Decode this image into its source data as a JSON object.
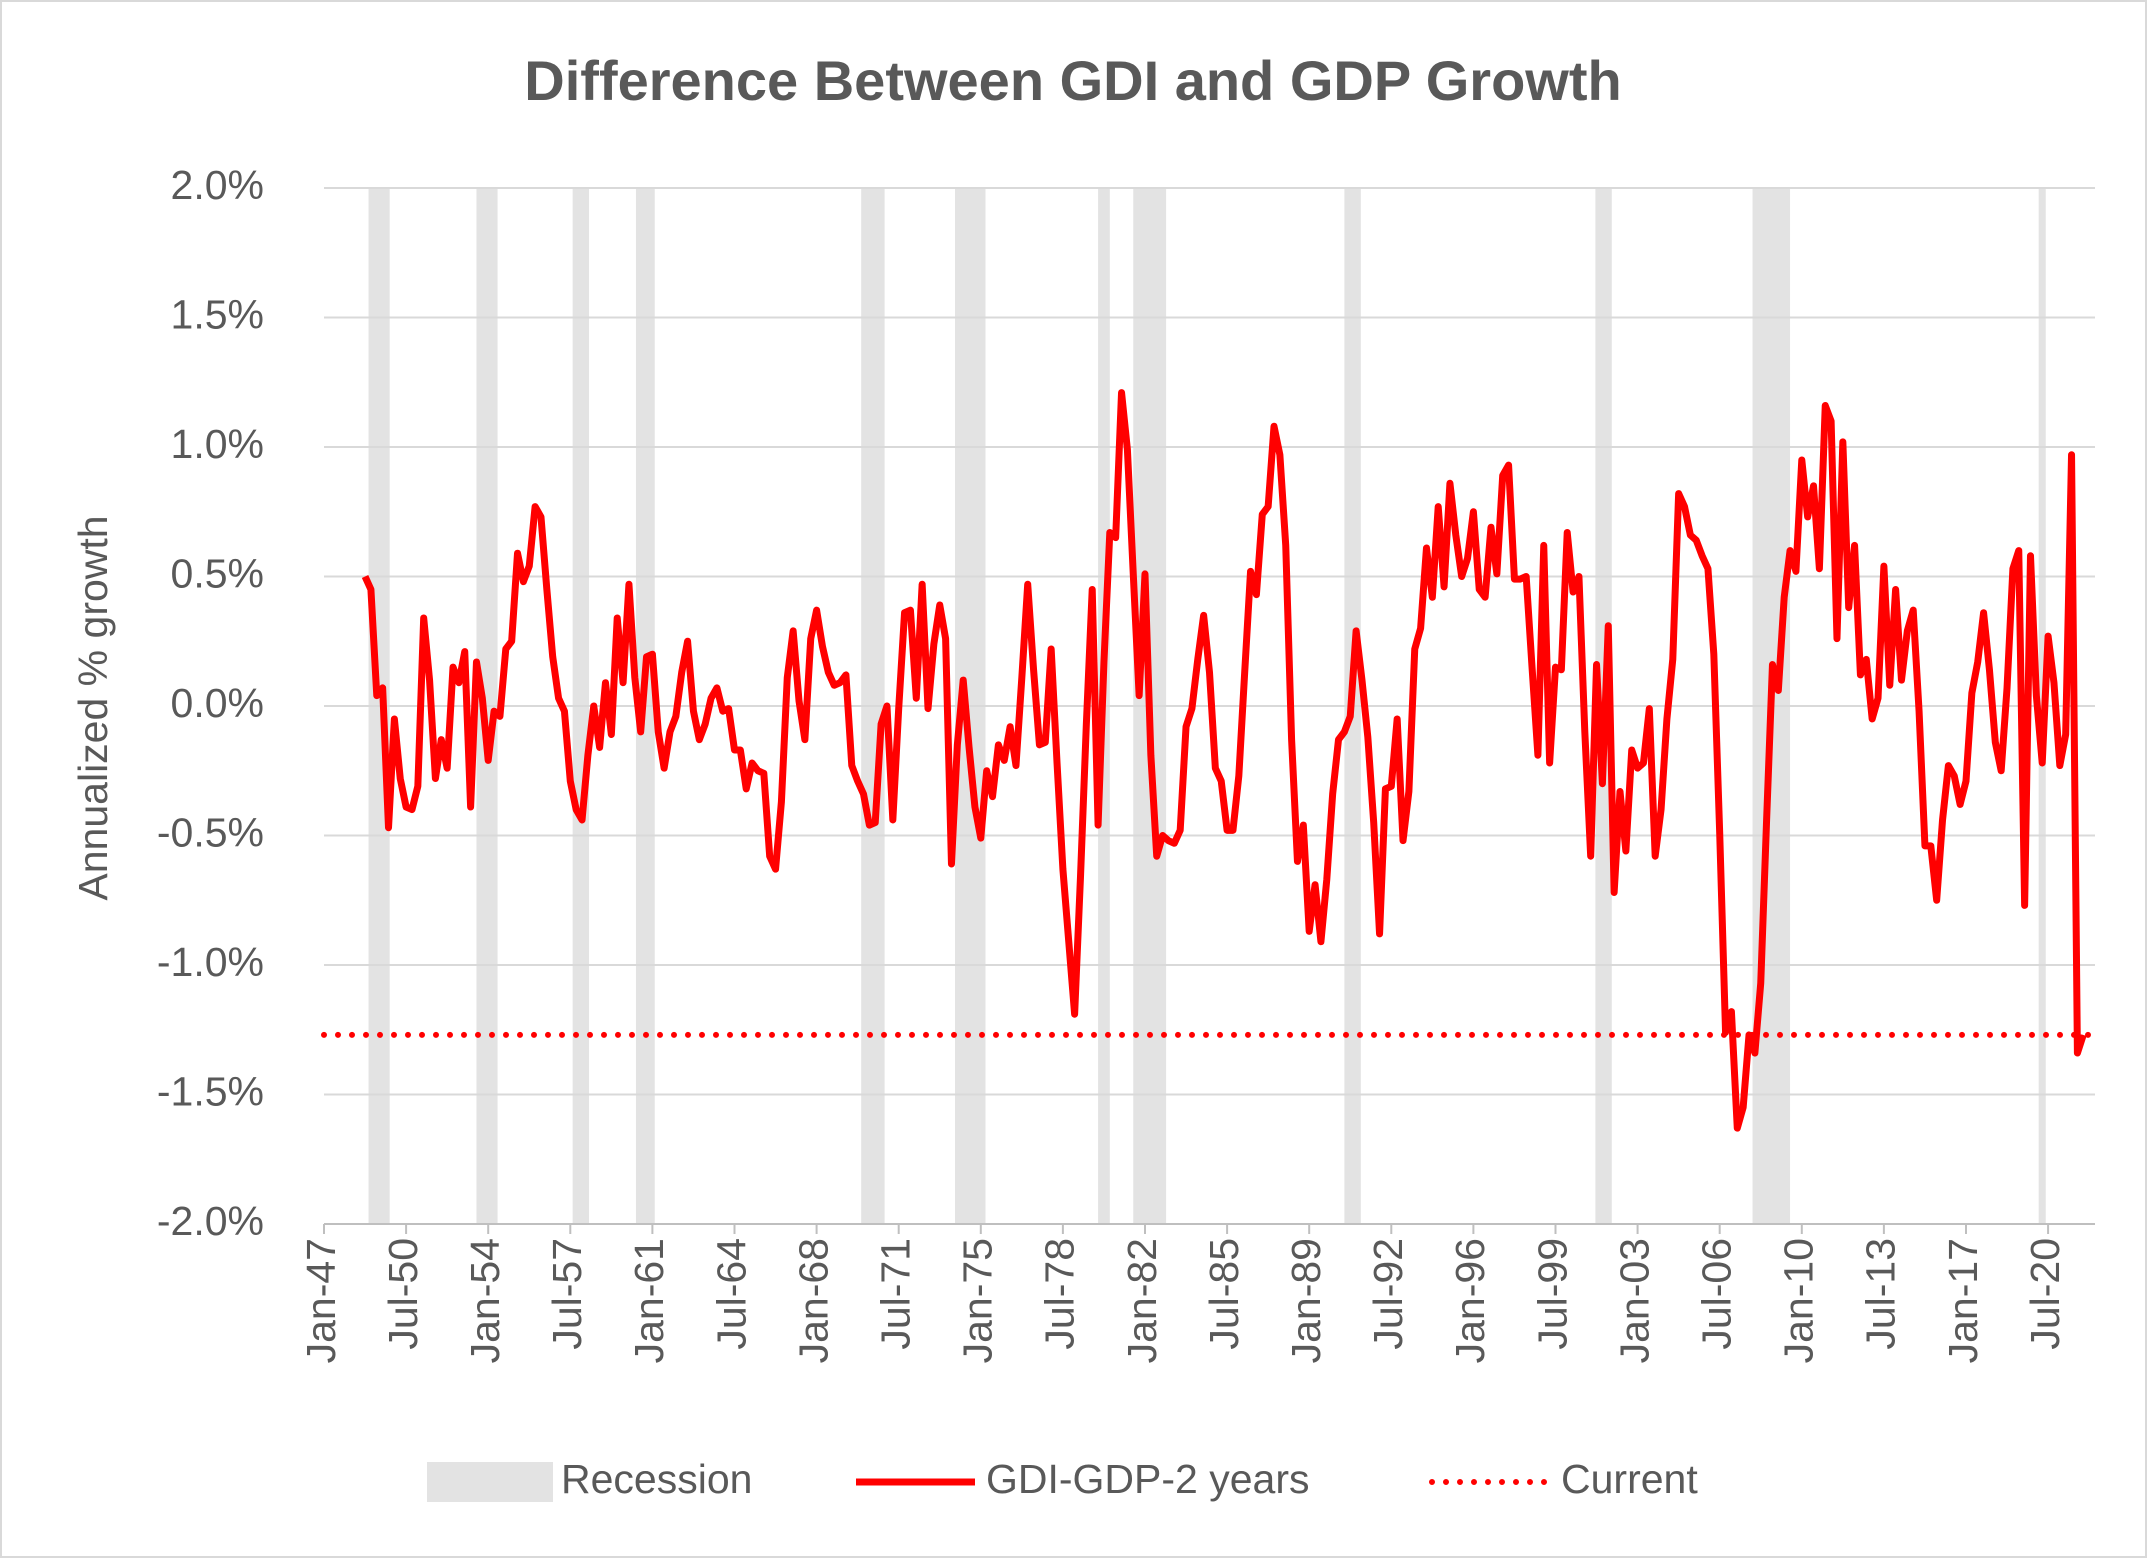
{
  "chart_data": {
    "type": "line",
    "title": "Difference Between GDI and GDP Growth",
    "y_label": "Annualized % growth",
    "xlim": [
      1947,
      2022.5
    ],
    "ylim": [
      -2,
      2
    ],
    "grid": true,
    "legend": "bottom",
    "xticks": [
      {
        "value": 1947,
        "label": "Jan-47"
      },
      {
        "value": 1950.5,
        "label": "Jul-50"
      },
      {
        "value": 1954,
        "label": "Jan-54"
      },
      {
        "value": 1957.5,
        "label": "Jul-57"
      },
      {
        "value": 1961,
        "label": "Jan-61"
      },
      {
        "value": 1964.5,
        "label": "Jul-64"
      },
      {
        "value": 1968,
        "label": "Jan-68"
      },
      {
        "value": 1971.5,
        "label": "Jul-71"
      },
      {
        "value": 1975,
        "label": "Jan-75"
      },
      {
        "value": 1978.5,
        "label": "Jul-78"
      },
      {
        "value": 1982,
        "label": "Jan-82"
      },
      {
        "value": 1985.5,
        "label": "Jul-85"
      },
      {
        "value": 1989,
        "label": "Jan-89"
      },
      {
        "value": 1992.5,
        "label": "Jul-92"
      },
      {
        "value": 1996,
        "label": "Jan-96"
      },
      {
        "value": 1999.5,
        "label": "Jul-99"
      },
      {
        "value": 2003,
        "label": "Jan-03"
      },
      {
        "value": 2006.5,
        "label": "Jul-06"
      },
      {
        "value": 2010,
        "label": "Jan-10"
      },
      {
        "value": 2013.5,
        "label": "Jul-13"
      },
      {
        "value": 2017,
        "label": "Jan-17"
      },
      {
        "value": 2020.5,
        "label": "Jul-20"
      }
    ],
    "yticks": [
      {
        "value": 2,
        "label": "2.0%"
      },
      {
        "value": 1.5,
        "label": "1.5%"
      },
      {
        "value": 1,
        "label": "1.0%"
      },
      {
        "value": 0.5,
        "label": "0.5%"
      },
      {
        "value": 0,
        "label": "0.0%"
      },
      {
        "value": -0.5,
        "label": "-0.5%"
      },
      {
        "value": -1,
        "label": "-1.0%"
      },
      {
        "value": -1.5,
        "label": "-1.5%"
      },
      {
        "value": -2,
        "label": "-2.0%"
      }
    ],
    "recessions": {
      "name": "Recession",
      "color": "#e3e3e3",
      "ranges": [
        [
          1948.9,
          1949.8
        ],
        [
          1953.5,
          1954.4
        ],
        [
          1957.6,
          1958.3
        ],
        [
          1960.3,
          1961.1
        ],
        [
          1969.9,
          1970.9
        ],
        [
          1973.9,
          1975.2
        ],
        [
          1980.0,
          1980.5
        ],
        [
          1981.5,
          1982.9
        ],
        [
          1990.5,
          1991.2
        ],
        [
          2001.2,
          2001.9
        ],
        [
          2007.9,
          2009.5
        ],
        [
          2020.1,
          2020.4
        ]
      ]
    },
    "x": [
      1948.75,
      1949,
      1949.25,
      1949.5,
      1949.75,
      1950,
      1950.25,
      1950.5,
      1950.75,
      1951,
      1951.25,
      1951.5,
      1951.75,
      1952,
      1952.25,
      1952.5,
      1952.75,
      1953,
      1953.25,
      1953.5,
      1953.75,
      1954,
      1954.25,
      1954.5,
      1954.75,
      1955,
      1955.25,
      1955.5,
      1955.75,
      1956,
      1956.25,
      1956.5,
      1956.75,
      1957,
      1957.25,
      1957.5,
      1957.75,
      1958,
      1958.25,
      1958.5,
      1958.75,
      1959,
      1959.25,
      1959.5,
      1959.75,
      1960,
      1960.25,
      1960.5,
      1960.75,
      1961,
      1961.25,
      1961.5,
      1961.75,
      1962,
      1962.25,
      1962.5,
      1962.75,
      1963,
      1963.25,
      1963.5,
      1963.75,
      1964,
      1964.25,
      1964.5,
      1964.75,
      1965,
      1965.25,
      1965.5,
      1965.75,
      1966,
      1966.25,
      1966.5,
      1966.75,
      1967,
      1967.25,
      1967.5,
      1967.75,
      1968,
      1968.25,
      1968.5,
      1968.75,
      1969,
      1969.25,
      1969.5,
      1969.75,
      1970,
      1970.25,
      1970.5,
      1970.75,
      1971,
      1971.25,
      1971.5,
      1971.75,
      1972,
      1972.25,
      1972.5,
      1972.75,
      1973,
      1973.25,
      1973.5,
      1973.75,
      1974,
      1974.25,
      1974.5,
      1974.75,
      1975,
      1975.25,
      1975.5,
      1975.75,
      1976,
      1976.25,
      1976.5,
      1976.75,
      1977,
      1977.25,
      1977.5,
      1977.75,
      1978,
      1978.25,
      1978.5,
      1978.75,
      1979,
      1979.25,
      1979.5,
      1979.75,
      1980,
      1980.25,
      1980.5,
      1980.75,
      1981,
      1981.25,
      1981.5,
      1981.75,
      1982,
      1982.25,
      1982.5,
      1982.75,
      1983,
      1983.25,
      1983.5,
      1983.75,
      1984,
      1984.25,
      1984.5,
      1984.75,
      1985,
      1985.25,
      1985.5,
      1985.75,
      1986,
      1986.25,
      1986.5,
      1986.75,
      1987,
      1987.25,
      1987.5,
      1987.75,
      1988,
      1988.25,
      1988.5,
      1988.75,
      1989,
      1989.25,
      1989.5,
      1989.75,
      1990,
      1990.25,
      1990.5,
      1990.75,
      1991,
      1991.25,
      1991.5,
      1991.75,
      1992,
      1992.25,
      1992.5,
      1992.75,
      1993,
      1993.25,
      1993.5,
      1993.75,
      1994,
      1994.25,
      1994.5,
      1994.75,
      1995,
      1995.25,
      1995.5,
      1995.75,
      1996,
      1996.25,
      1996.5,
      1996.75,
      1997,
      1997.25,
      1997.5,
      1997.75,
      1998,
      1998.25,
      1998.5,
      1998.75,
      1999,
      1999.25,
      1999.5,
      1999.75,
      2000,
      2000.25,
      2000.5,
      2000.75,
      2001,
      2001.25,
      2001.5,
      2001.75,
      2002,
      2002.25,
      2002.5,
      2002.75,
      2003,
      2003.25,
      2003.5,
      2003.75,
      2004,
      2004.25,
      2004.5,
      2004.75,
      2005,
      2005.25,
      2005.5,
      2005.75,
      2006,
      2006.25,
      2006.5,
      2006.75,
      2007,
      2007.25,
      2007.5,
      2007.75,
      2008,
      2008.25,
      2008.5,
      2008.75,
      2009,
      2009.25,
      2009.5,
      2009.75,
      2010,
      2010.25,
      2010.5,
      2010.75,
      2011,
      2011.25,
      2011.5,
      2011.75,
      2012,
      2012.25,
      2012.5,
      2012.75,
      2013,
      2013.25,
      2013.5,
      2013.75,
      2014,
      2014.25,
      2014.5,
      2014.75,
      2015,
      2015.25,
      2015.5,
      2015.75,
      2016,
      2016.25,
      2016.5,
      2016.75,
      2017,
      2017.25,
      2017.5,
      2017.75,
      2018,
      2018.25,
      2018.5,
      2018.75,
      2019,
      2019.25,
      2019.5,
      2019.75,
      2020,
      2020.25,
      2020.5,
      2020.75,
      2021,
      2021.25,
      2021.5,
      2021.75,
      2022
    ],
    "series": [
      {
        "name": "GDI-GDP-2 years",
        "color": "#ff0000",
        "style": "solid",
        "values": [
          0.5,
          0.45,
          0.04,
          0.07,
          -0.47,
          -0.05,
          -0.28,
          -0.39,
          -0.4,
          -0.31,
          0.34,
          0.1,
          -0.28,
          -0.13,
          -0.24,
          0.15,
          0.09,
          0.21,
          -0.39,
          0.17,
          0.03,
          -0.21,
          -0.02,
          -0.04,
          0.22,
          0.25,
          0.59,
          0.48,
          0.54,
          0.77,
          0.73,
          0.45,
          0.19,
          0.03,
          -0.02,
          -0.29,
          -0.4,
          -0.44,
          -0.19,
          0.0,
          -0.16,
          0.09,
          -0.11,
          0.34,
          0.09,
          0.47,
          0.11,
          -0.1,
          0.19,
          0.2,
          -0.1,
          -0.24,
          -0.1,
          -0.04,
          0.13,
          0.25,
          -0.02,
          -0.13,
          -0.07,
          0.03,
          0.07,
          -0.02,
          -0.01,
          -0.17,
          -0.17,
          -0.32,
          -0.22,
          -0.25,
          -0.26,
          -0.58,
          -0.63,
          -0.37,
          0.11,
          0.29,
          0.02,
          -0.13,
          0.26,
          0.37,
          0.23,
          0.13,
          0.08,
          0.09,
          0.12,
          -0.23,
          -0.29,
          -0.34,
          -0.46,
          -0.45,
          -0.07,
          0.0,
          -0.44,
          -0.01,
          0.36,
          0.37,
          0.03,
          0.47,
          -0.01,
          0.24,
          0.39,
          0.26,
          -0.61,
          -0.15,
          0.1,
          -0.16,
          -0.39,
          -0.51,
          -0.25,
          -0.35,
          -0.15,
          -0.21,
          -0.08,
          -0.23,
          0.11,
          0.47,
          0.14,
          -0.15,
          -0.14,
          0.22,
          -0.22,
          -0.63,
          -0.91,
          -1.19,
          -0.66,
          -0.07,
          0.45,
          -0.46,
          0.17,
          0.67,
          0.65,
          1.21,
          0.99,
          0.51,
          0.04,
          0.51,
          -0.19,
          -0.58,
          -0.5,
          -0.52,
          -0.53,
          -0.48,
          -0.08,
          -0.01,
          0.18,
          0.35,
          0.13,
          -0.24,
          -0.29,
          -0.48,
          -0.48,
          -0.27,
          0.13,
          0.52,
          0.43,
          0.74,
          0.77,
          1.08,
          0.97,
          0.62,
          -0.13,
          -0.6,
          -0.46,
          -0.87,
          -0.69,
          -0.91,
          -0.67,
          -0.34,
          -0.13,
          -0.1,
          -0.04,
          0.29,
          0.1,
          -0.12,
          -0.45,
          -0.88,
          -0.32,
          -0.31,
          -0.05,
          -0.52,
          -0.33,
          0.22,
          0.3,
          0.61,
          0.42,
          0.77,
          0.46,
          0.86,
          0.66,
          0.5,
          0.57,
          0.75,
          0.45,
          0.42,
          0.69,
          0.51,
          0.89,
          0.93,
          0.49,
          0.49,
          0.5,
          0.15,
          -0.19,
          0.62,
          -0.22,
          0.15,
          0.14,
          0.67,
          0.44,
          0.5,
          -0.1,
          -0.58,
          0.16,
          -0.3,
          0.31,
          -0.72,
          -0.33,
          -0.56,
          -0.17,
          -0.24,
          -0.22,
          -0.01,
          -0.58,
          -0.4,
          -0.05,
          0.18,
          0.82,
          0.77,
          0.66,
          0.64,
          0.58,
          0.53,
          0.2,
          -0.49,
          -1.26,
          -1.18,
          -1.63,
          -1.55,
          -1.27,
          -1.34,
          -1.07,
          -0.44,
          0.16,
          0.06,
          0.42,
          0.6,
          0.52,
          0.95,
          0.73,
          0.85,
          0.53,
          1.16,
          1.1,
          0.26,
          1.02,
          0.38,
          0.62,
          0.12,
          0.18,
          -0.05,
          0.03,
          0.54,
          0.08,
          0.45,
          0.1,
          0.29,
          0.37,
          -0.02,
          -0.54,
          -0.54,
          -0.75,
          -0.44,
          -0.23,
          -0.27,
          -0.38,
          -0.29,
          0.05,
          0.17,
          0.36,
          0.14,
          -0.14,
          -0.25,
          0.07,
          0.53,
          0.6,
          -0.77,
          0.58,
          0.04,
          -0.22,
          0.27,
          0.09,
          -0.23,
          -0.11,
          0.97,
          -1.34,
          -1.27
        ]
      },
      {
        "name": "Current",
        "color": "#ff0000",
        "style": "dotted",
        "x": [
          1947,
          2022.5
        ],
        "values": [
          -1.27,
          -1.27
        ]
      }
    ]
  }
}
